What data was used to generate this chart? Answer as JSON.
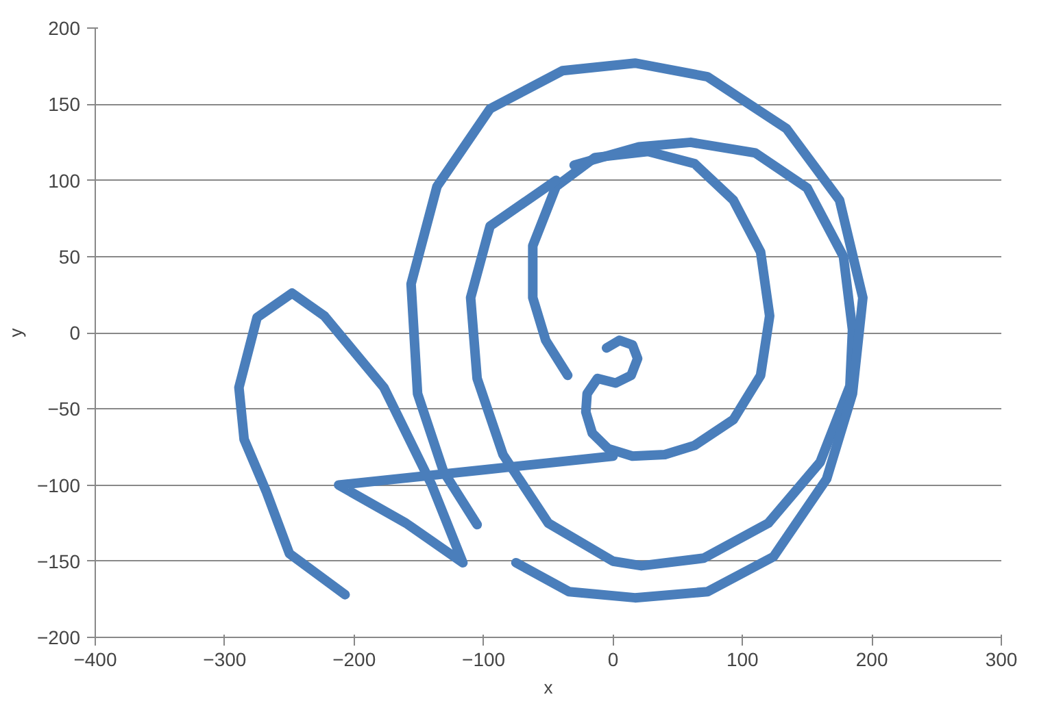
{
  "chart_data": {
    "type": "line",
    "xlabel": "x",
    "ylabel": "y",
    "xlim": [
      -400,
      300
    ],
    "ylim": [
      -200,
      200
    ],
    "xticks": [
      -400,
      -300,
      -200,
      -100,
      0,
      100,
      200,
      300
    ],
    "yticks": [
      -200,
      -150,
      -100,
      -50,
      0,
      50,
      100,
      150,
      200
    ],
    "grid": "y",
    "marker": "none",
    "line_style": "solid",
    "series": [
      {
        "color": "#4a7ebb",
        "x": [
          -5,
          5,
          15,
          19,
          14,
          2,
          -12,
          -20,
          -21,
          -16,
          -4,
          15,
          40,
          63,
          93,
          114,
          121,
          114,
          93,
          63,
          27,
          -14,
          -44,
          -62,
          -62,
          -52,
          -35
        ],
        "values": [
          -10,
          -5,
          -8,
          -17,
          -28,
          -33,
          -30,
          -40,
          -52,
          -66,
          -76,
          -81,
          -80,
          -74,
          -57,
          -28,
          11,
          53,
          87,
          111,
          119,
          115,
          96,
          57,
          23,
          -5,
          -28
        ]
      },
      {
        "color": "#4a7ebb",
        "x": [
          -44,
          -95,
          -110,
          -105,
          -85,
          -50,
          0,
          22,
          70,
          120,
          160,
          183,
          185,
          178,
          150,
          110,
          60,
          20,
          -30
        ],
        "values": [
          100,
          70,
          23,
          -30,
          -80,
          -125,
          -150,
          -153,
          -148,
          -125,
          -85,
          -35,
          2,
          50,
          95,
          118,
          125,
          122,
          110
        ]
      },
      {
        "color": "#4a7ebb",
        "x": [
          -105,
          -131,
          -151,
          -156,
          -136,
          -95,
          -39,
          17,
          73,
          134,
          175,
          193,
          185,
          165,
          124,
          73,
          17,
          -34,
          -75
        ],
        "values": [
          -126,
          -91,
          -40,
          32,
          96,
          147,
          172,
          177,
          168,
          134,
          87,
          23,
          -40,
          -96,
          -147,
          -170,
          -174,
          -170,
          -151
        ]
      },
      {
        "color": "#4a7ebb",
        "x": [
          0,
          -100,
          -212,
          -160,
          -116,
          -140,
          -177,
          -223,
          -248,
          -275,
          -289,
          -285,
          -268,
          -250,
          -207
        ],
        "values": [
          -81,
          -90,
          -100,
          -125,
          -151,
          -100,
          -36,
          11,
          26,
          10,
          -36,
          -70,
          -104,
          -145,
          -172
        ]
      }
    ]
  }
}
